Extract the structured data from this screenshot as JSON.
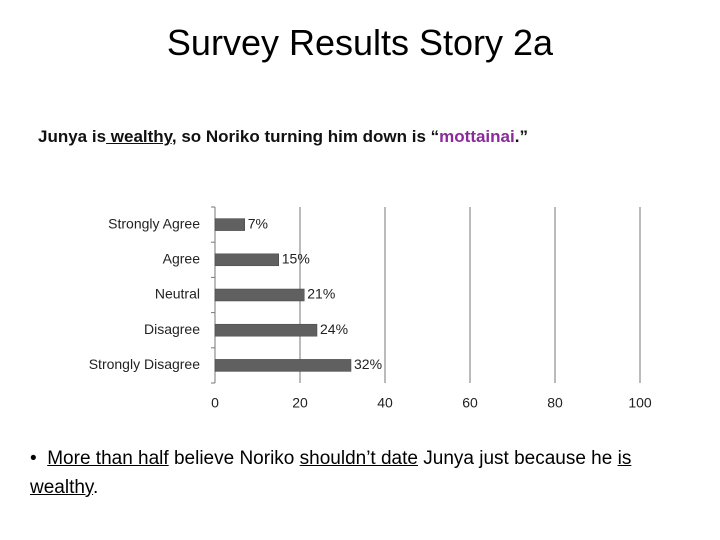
{
  "title": "Survey Results Story 2a",
  "question": [
    "Junya is",
    " wealthy",
    ", so Noriko turning him down is “",
    "mottainai",
    ".”"
  ],
  "bullet": [
    "More than half",
    " believe Noriko ",
    "shouldn’t date",
    " Junya just because he ",
    "is wealthy",
    "."
  ],
  "chart_data": {
    "type": "bar",
    "orientation": "horizontal",
    "categories": [
      "Strongly Agree",
      "Agree",
      "Neutral",
      "Disagree",
      "Strongly Disagree"
    ],
    "values": [
      7,
      15,
      21,
      24,
      32
    ],
    "value_labels": [
      "7%",
      "15%",
      "21%",
      "24%",
      "32%"
    ],
    "color": "#606060",
    "xlim": [
      0,
      100
    ],
    "xticks": [
      0,
      20,
      40,
      60,
      80,
      100
    ],
    "grid": true
  }
}
